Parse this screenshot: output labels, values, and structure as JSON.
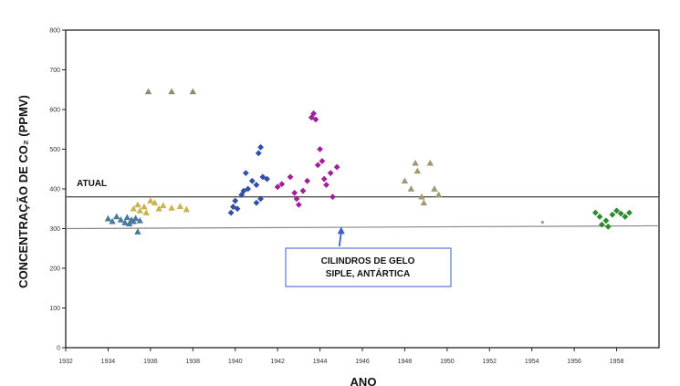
{
  "chart_data": {
    "type": "scatter",
    "xlabel": "ANO",
    "ylabel": "CONCENTRAÇÃO DE CO₂ (PPMV)",
    "xlim": [
      1932,
      1960
    ],
    "ylim": [
      0,
      800
    ],
    "x_ticks": [
      "1932",
      "1934",
      "1936",
      "1938",
      "1940",
      "1942",
      "1944",
      "1946",
      "1948",
      "1950",
      "1952",
      "1954",
      "1956",
      "1958"
    ],
    "y_ticks": [
      "0",
      "100",
      "200",
      "300",
      "400",
      "500",
      "600",
      "700",
      "800"
    ],
    "grid": false,
    "reference_lines": [
      {
        "label": "ATUAL",
        "y": 380,
        "x_start": 1932,
        "x_end": 1960
      },
      {
        "label": "",
        "y_start": 300,
        "y_end": 307,
        "x_start": 1932,
        "x_end": 1960
      }
    ],
    "annotation": {
      "lines": [
        "CILINDROS DE GELO",
        "SIPLE, ANTÁRTICA"
      ],
      "arrow_to": {
        "x": 1945,
        "y": 305
      }
    },
    "series": [
      {
        "color": "#4a7a9a",
        "marker": "triangle",
        "points": [
          [
            1934,
            325
          ],
          [
            1934.2,
            318
          ],
          [
            1934.4,
            330
          ],
          [
            1934.6,
            322
          ],
          [
            1934.8,
            315
          ],
          [
            1934.9,
            328
          ],
          [
            1935,
            312
          ],
          [
            1935.1,
            322
          ],
          [
            1935.2,
            318
          ],
          [
            1935.3,
            326
          ],
          [
            1935.4,
            292
          ],
          [
            1935.5,
            320
          ]
        ]
      },
      {
        "color": "#c8b450",
        "marker": "triangle",
        "points": [
          [
            1935.2,
            350
          ],
          [
            1935.4,
            360
          ],
          [
            1935.5,
            345
          ],
          [
            1935.7,
            355
          ],
          [
            1935.8,
            340
          ],
          [
            1936,
            370
          ],
          [
            1936.2,
            365
          ],
          [
            1936.4,
            350
          ],
          [
            1936.6,
            358
          ],
          [
            1937,
            352
          ],
          [
            1937.4,
            356
          ],
          [
            1937.7,
            348
          ]
        ]
      },
      {
        "color": "#8c8c70",
        "marker": "triangle",
        "points": [
          [
            1935.9,
            645
          ],
          [
            1937,
            645
          ],
          [
            1938,
            645
          ]
        ]
      },
      {
        "color": "#2f4fa8",
        "marker": "diamond",
        "points": [
          [
            1939.8,
            340
          ],
          [
            1939.9,
            355
          ],
          [
            1940,
            370
          ],
          [
            1940.1,
            350
          ],
          [
            1940.3,
            385
          ],
          [
            1940.4,
            395
          ],
          [
            1940.5,
            440
          ],
          [
            1940.6,
            400
          ],
          [
            1940.8,
            420
          ],
          [
            1941,
            410
          ],
          [
            1941.1,
            490
          ],
          [
            1941.2,
            505
          ],
          [
            1941.3,
            430
          ],
          [
            1941.5,
            425
          ],
          [
            1941.2,
            375
          ],
          [
            1941,
            365
          ]
        ]
      },
      {
        "color": "#a0209a",
        "marker": "diamond",
        "points": [
          [
            1942,
            405
          ],
          [
            1942.2,
            412
          ],
          [
            1942.6,
            430
          ],
          [
            1942.8,
            390
          ],
          [
            1942.9,
            375
          ],
          [
            1943,
            360
          ],
          [
            1943.2,
            395
          ],
          [
            1943.4,
            420
          ],
          [
            1943.6,
            580
          ],
          [
            1943.7,
            590
          ],
          [
            1943.8,
            575
          ],
          [
            1943.9,
            460
          ],
          [
            1944,
            500
          ],
          [
            1944.1,
            470
          ],
          [
            1944.2,
            425
          ],
          [
            1944.3,
            410
          ],
          [
            1944.5,
            440
          ],
          [
            1944.6,
            380
          ],
          [
            1944.8,
            455
          ]
        ]
      },
      {
        "color": "#a09870",
        "marker": "triangle",
        "points": [
          [
            1948,
            420
          ],
          [
            1948.3,
            400
          ],
          [
            1948.5,
            465
          ],
          [
            1948.6,
            445
          ],
          [
            1948.8,
            380
          ],
          [
            1948.9,
            365
          ],
          [
            1949.2,
            465
          ],
          [
            1949.4,
            400
          ],
          [
            1949.6,
            385
          ]
        ]
      },
      {
        "color": "#2e8a2e",
        "marker": "diamond",
        "points": [
          [
            1957,
            340
          ],
          [
            1957.2,
            330
          ],
          [
            1957.3,
            310
          ],
          [
            1957.5,
            320
          ],
          [
            1957.6,
            305
          ],
          [
            1957.8,
            335
          ],
          [
            1958,
            345
          ],
          [
            1958.2,
            338
          ],
          [
            1958.4,
            330
          ],
          [
            1958.6,
            340
          ]
        ]
      },
      {
        "color": "#999999",
        "marker": "dot",
        "points": [
          [
            1954.5,
            316
          ]
        ]
      }
    ]
  }
}
